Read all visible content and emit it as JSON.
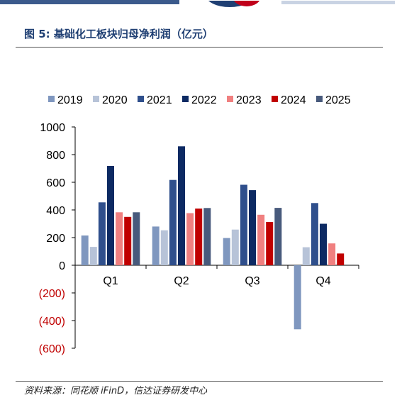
{
  "header": {
    "figure_title": "图 5:  基础化工板块归母净利润（亿元）"
  },
  "footer": {
    "source": "资料来源：同花顺 iFinD，信达证券研发中心"
  },
  "colors": {
    "bar_2019": "#7f97bf",
    "bar_2020": "#b7c3d8",
    "bar_2021": "#2f4f8c",
    "bar_2022": "#0d2a63",
    "bar_2023": "#f08080",
    "bar_2024": "#c00000",
    "bar_2025": "#485a7c",
    "negative_tick": "#c00000"
  },
  "chart_data": {
    "type": "bar",
    "title": "",
    "xlabel": "",
    "ylabel": "",
    "categories": [
      "Q1",
      "Q2",
      "Q3",
      "Q4"
    ],
    "ylim": [
      -600,
      1000
    ],
    "yticks": [
      1000,
      800,
      600,
      400,
      200,
      0,
      -200,
      -400,
      -600
    ],
    "ytick_labels": [
      "1000",
      "800",
      "600",
      "400",
      "200",
      "0",
      "(200)",
      "(400)",
      "(600)"
    ],
    "legend_position": "top",
    "grid": false,
    "series": [
      {
        "name": "2019",
        "values": [
          215,
          280,
          197,
          -463
        ]
      },
      {
        "name": "2020",
        "values": [
          133,
          253,
          258,
          130
        ]
      },
      {
        "name": "2021",
        "values": [
          455,
          617,
          582,
          450
        ]
      },
      {
        "name": "2022",
        "values": [
          718,
          860,
          543,
          300
        ]
      },
      {
        "name": "2023",
        "values": [
          383,
          377,
          365,
          158
        ]
      },
      {
        "name": "2024",
        "values": [
          350,
          410,
          313,
          85
        ]
      },
      {
        "name": "2025",
        "values": [
          383,
          414,
          415,
          null
        ]
      }
    ]
  }
}
